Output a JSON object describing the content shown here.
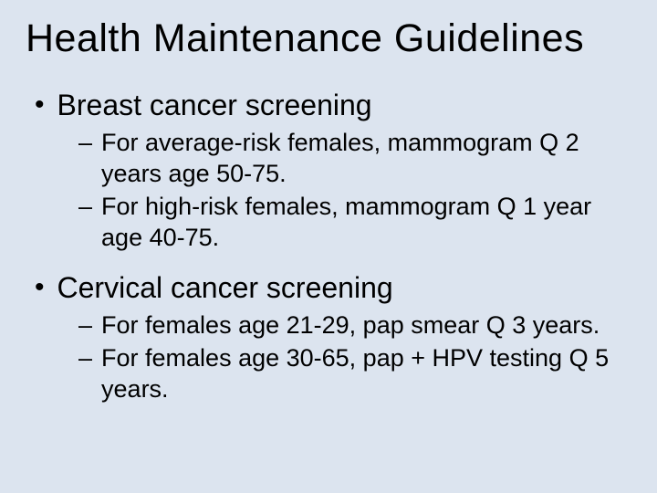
{
  "background_color": "#dce4ef",
  "text_color": "#000000",
  "font_family": "Comic Sans MS",
  "title": {
    "text": "Health Maintenance Guidelines",
    "fontsize": 43
  },
  "bullets": [
    {
      "label": "Breast cancer screening",
      "subitems": [
        "For average-risk females, mammogram Q 2 years age 50-75.",
        "For high-risk females, mammogram Q 1 year age 40-75."
      ]
    },
    {
      "label": "Cervical cancer screening",
      "subitems": [
        "For females age 21-29, pap smear Q 3 years.",
        "For females age 30-65, pap + HPV testing Q 5 years."
      ]
    }
  ],
  "bullet_fontsize": 32,
  "sub_fontsize": 27,
  "bullet_marker": "•",
  "sub_marker": "–"
}
